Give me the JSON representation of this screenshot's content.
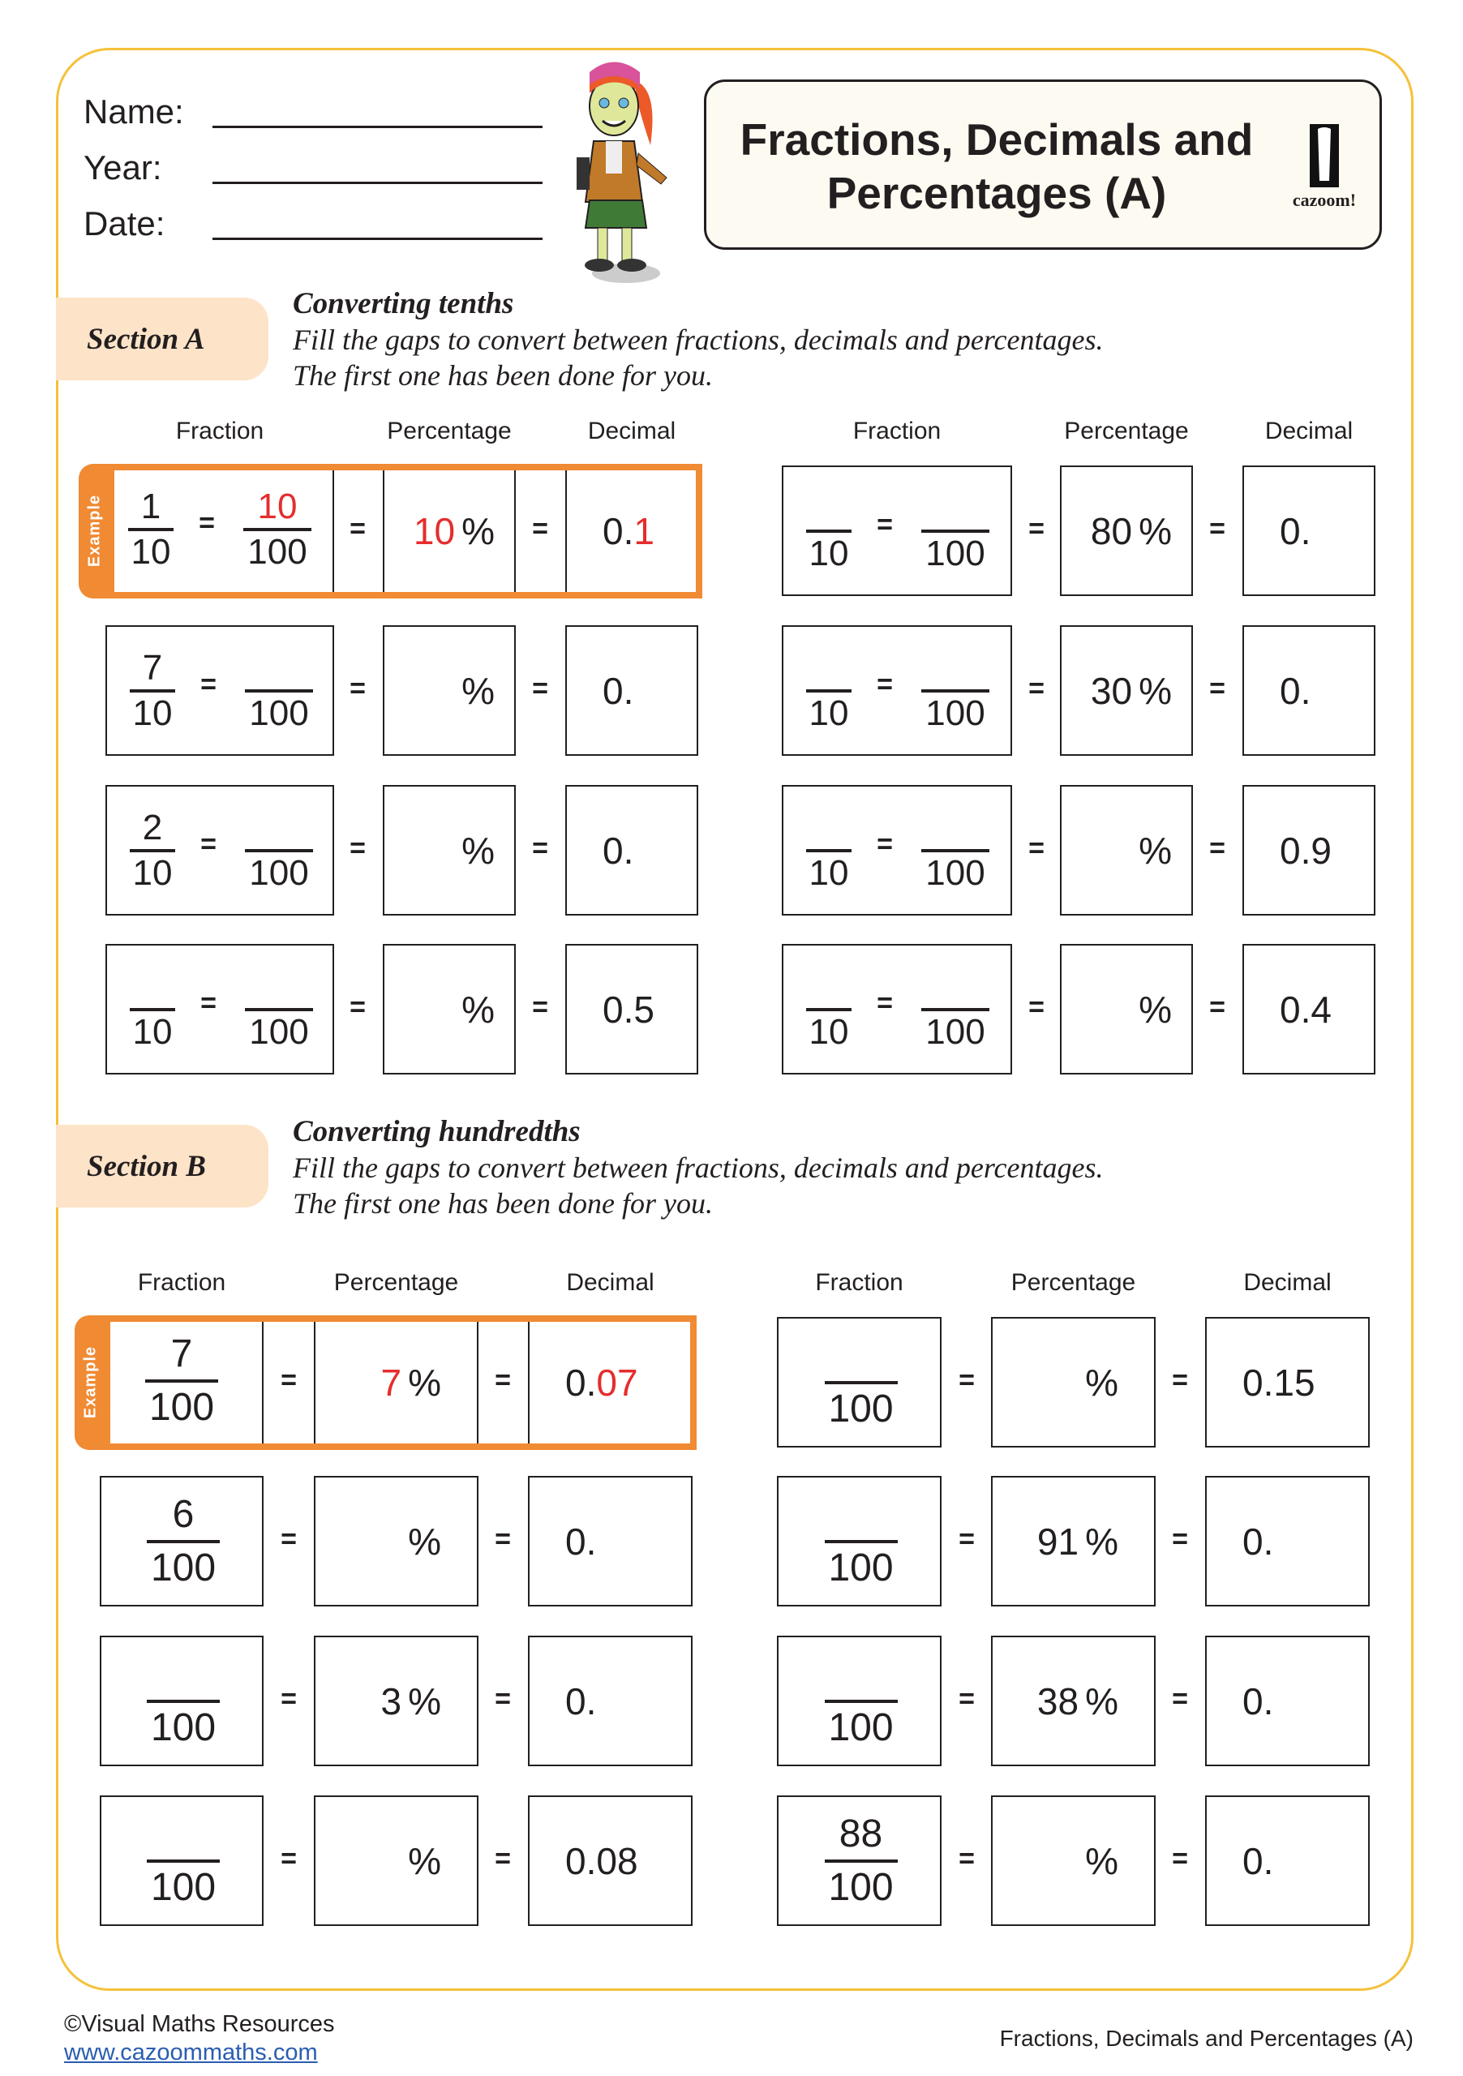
{
  "header": {
    "name_label": "Name:",
    "year_label": "Year:",
    "date_label": "Date:",
    "title_line1": "Fractions, Decimals and",
    "title_line2": "Percentages (A)",
    "logo_text": "cazoom!"
  },
  "colors": {
    "accent_orange": "#f08a33",
    "answer_red": "#e52d2d",
    "border_yellow": "#f5c13a",
    "tab_peach": "#fde3c8"
  },
  "columns": {
    "fraction": "Fraction",
    "percentage": "Percentage",
    "decimal": "Decimal"
  },
  "symbols": {
    "equals": "=",
    "percent": "%",
    "den10": "10",
    "den100": "100",
    "example": "Example"
  },
  "sectionA": {
    "tab": "Section A",
    "heading": "Converting tenths",
    "instruction1": "Fill the gaps to convert between fractions, decimals and percentages.",
    "instruction2": "The first one has been done for you.",
    "left": [
      {
        "n10": "1",
        "n100": "10",
        "pct": "10",
        "dec": "0.",
        "dec_answer": "1",
        "example": true
      },
      {
        "n10": "7",
        "n100": "",
        "pct": "",
        "dec": "0."
      },
      {
        "n10": "2",
        "n100": "",
        "pct": "",
        "dec": "0."
      },
      {
        "n10": "",
        "n100": "",
        "pct": "",
        "dec": "0.5"
      }
    ],
    "right": [
      {
        "n10": "",
        "n100": "",
        "pct": "80",
        "dec": "0."
      },
      {
        "n10": "",
        "n100": "",
        "pct": "30",
        "dec": "0."
      },
      {
        "n10": "",
        "n100": "",
        "pct": "",
        "dec": "0.9"
      },
      {
        "n10": "",
        "n100": "",
        "pct": "",
        "dec": "0.4"
      }
    ]
  },
  "sectionB": {
    "tab": "Section B",
    "heading": "Converting hundredths",
    "instruction1": "Fill the gaps to convert between fractions, decimals and percentages.",
    "instruction2": "The first one has been done for you.",
    "left": [
      {
        "n100": "7",
        "pct": "7",
        "dec": "0.",
        "dec_answer": "07",
        "example": true
      },
      {
        "n100": "6",
        "pct": "",
        "dec": "0."
      },
      {
        "n100": "",
        "pct": "3",
        "dec": "0."
      },
      {
        "n100": "",
        "pct": "",
        "dec": "0.08"
      }
    ],
    "right": [
      {
        "n100": "",
        "pct": "",
        "dec": "0.15"
      },
      {
        "n100": "",
        "pct": "91",
        "dec": "0."
      },
      {
        "n100": "",
        "pct": "38",
        "dec": "0."
      },
      {
        "n100": "88",
        "pct": "",
        "dec": "0."
      }
    ]
  },
  "footer": {
    "copyright": "©Visual Maths Resources",
    "link": "www.cazoommaths.com",
    "doc_title": "Fractions, Decimals and Percentages (A)"
  }
}
